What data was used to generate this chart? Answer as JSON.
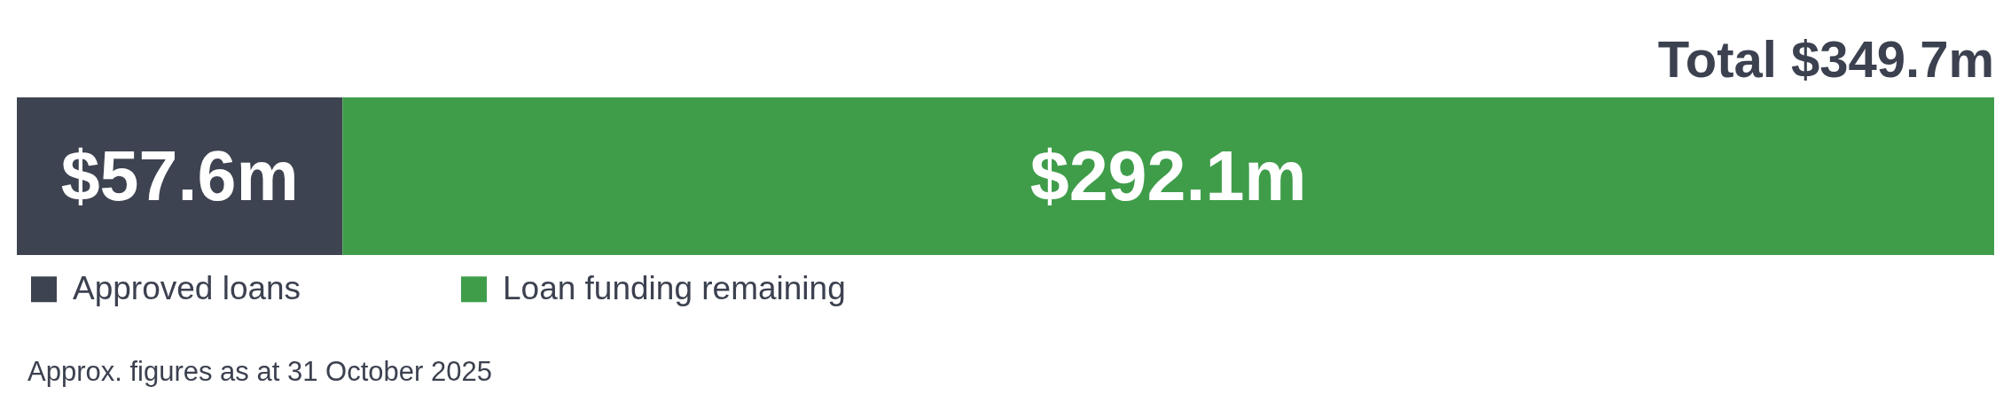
{
  "chart_data": {
    "type": "bar",
    "orientation": "horizontal",
    "stacked": true,
    "categories": [
      null
    ],
    "series": [
      {
        "name": "Approved loans",
        "color": "#3d4350",
        "values": [
          57.6
        ],
        "value_labels": [
          "$57.6m"
        ]
      },
      {
        "name": "Loan funding remaining",
        "color": "#3f9d4a",
        "values": [
          292.1
        ],
        "value_labels": [
          "$292.1m"
        ]
      }
    ],
    "totals": [
      "Total $349.7m"
    ],
    "legend": "bottom left",
    "annotations": [
      "Approx. figures as at 31 October 2025"
    ]
  }
}
